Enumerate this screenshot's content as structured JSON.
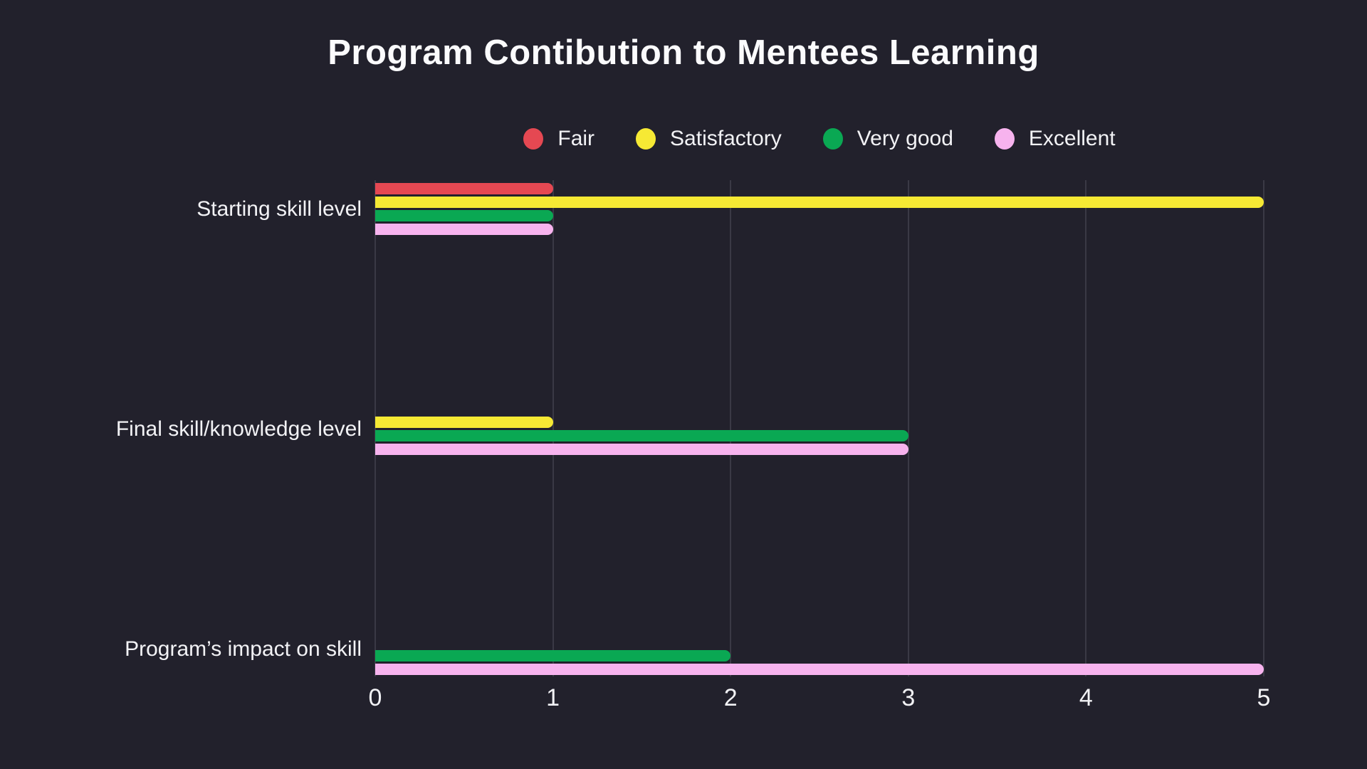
{
  "title": "Program Contibution to Mentees Learning",
  "colors": {
    "background": "#22212c",
    "gridline": "#3a3945",
    "text": "#f2f2f5",
    "title_text": "#fbfbfd",
    "fair": "#e54852",
    "satisfactory": "#f6e934",
    "very_good": "#0aa853",
    "excellent": "#f7b3ee"
  },
  "chart_data": {
    "type": "bar",
    "orientation": "horizontal",
    "title": "Program Contibution to Mentees Learning",
    "categories": [
      "Starting skill level",
      "Final skill/knowledge level",
      "Program’s impact on skill"
    ],
    "series": [
      {
        "name": "Fair",
        "color": "#e54852",
        "values": [
          1,
          0,
          0
        ]
      },
      {
        "name": "Satisfactory",
        "color": "#f6e934",
        "values": [
          5,
          1,
          0
        ]
      },
      {
        "name": "Very good",
        "color": "#0aa853",
        "values": [
          1,
          3,
          2
        ]
      },
      {
        "name": "Excellent",
        "color": "#f7b3ee",
        "values": [
          1,
          3,
          5
        ]
      }
    ],
    "xlabel": "",
    "ylabel": "",
    "xlim": [
      0,
      5
    ],
    "x_ticks": [
      0,
      1,
      2,
      3,
      4,
      5
    ],
    "grid": "vertical-only",
    "legend_position": "top"
  }
}
